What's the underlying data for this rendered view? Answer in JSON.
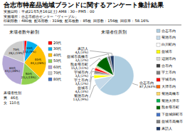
{
  "title": "合志市特産品地域ブランドに関するアンケート集計結果",
  "subtitle": [
    "実施日時：平成21年5月16日(土) AM8：30～PM5：00",
    "実施場所：合志市総合センター「ヴィーブル」",
    "印刷部数：480枚  配布部数：319枚  配布枚数：85枚  回答数：156枚  回収率：58.16%"
  ],
  "chart_data": [
    {
      "type": "pie",
      "title": "来場者数年齢別",
      "categories": [
        "20代",
        "30代",
        "40代",
        "50代",
        "60代",
        "70代",
        "80代"
      ],
      "values": [
        3,
        13,
        40,
        23,
        43,
        28,
        1
      ],
      "colors": [
        "#ff0000",
        "#00b0f0",
        "#ffc000",
        "#92d050",
        "#b4a7d6",
        "#cccccc",
        "#4472c4"
      ],
      "value_labels": [
        null,
        "13人(9%)",
        "40人(26%)",
        "23人(15%)",
        "43人(28%)",
        "28人(19%)",
        null
      ],
      "data_labels": true,
      "legend": "right",
      "annotations": [
        "来場者性別",
        "男   46名",
        "女  110名"
      ]
    },
    {
      "type": "pie",
      "title": "来場者住所別",
      "categories": [
        "合志市内",
        "菊池市内",
        "白川町内",
        "益城市",
        "辺測市内",
        "合市内",
        "宇土市内",
        "宇城市内",
        "大津市内",
        "菊池高橋市",
        "菊池大津市",
        "熊本県市町",
        "下益城鐸町市",
        "益城市高橋市",
        "来訪人"
      ],
      "values": [
        87,
        13,
        1,
        4,
        1,
        1,
        3,
        3,
        1,
        1,
        1,
        15,
        1,
        3,
        4
      ],
      "colors": [
        "#aecde0",
        "#c5d9e8",
        "#ffffff",
        "#ffff00",
        "#d9d9d9",
        "#3f3f3f",
        "#808080",
        "#ff0000",
        "#ff6600",
        "#ffd966",
        "#00b050",
        "#006400",
        "#4472c4",
        "#808080",
        "#1f3864"
      ],
      "value_labels": [
        "87人(63%)",
        "13人(9%)",
        null,
        "4人(3%)",
        null,
        null,
        "3人(2%)",
        "3人(2%)",
        null,
        null,
        null,
        "15人(11%)",
        null,
        "3人(2%)",
        "4人(3%)"
      ],
      "data_labels": true,
      "legend": "right"
    }
  ]
}
